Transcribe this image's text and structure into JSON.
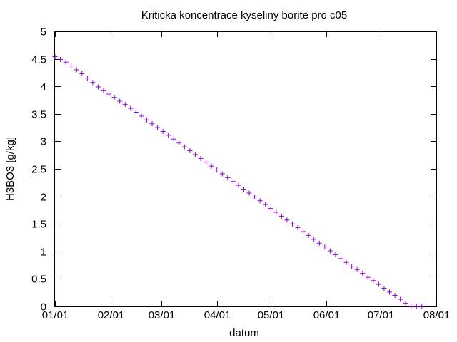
{
  "chart_data": {
    "type": "scatter",
    "title": "Kriticka koncentrace kyseliny borite pro c05",
    "xlabel": "datum",
    "ylabel": "H3BO3 [g/kg]",
    "xlim": [
      "01/01",
      "08/01"
    ],
    "ylim": [
      0,
      5
    ],
    "x_ticks": [
      "01/01",
      "02/01",
      "03/01",
      "04/01",
      "05/01",
      "06/01",
      "07/01",
      "08/01"
    ],
    "y_ticks": [
      "0",
      "0.5",
      "1",
      "1.5",
      "2",
      "2.5",
      "3",
      "3.5",
      "4",
      "4.5",
      "5"
    ],
    "grid": false,
    "legend": "none",
    "marker": "+",
    "series": [
      {
        "color": "#9400d3",
        "x": [
          "01/01",
          "01/04",
          "01/07",
          "01/10",
          "01/13",
          "01/16",
          "01/19",
          "01/22",
          "01/25",
          "01/28",
          "01/31",
          "02/03",
          "02/06",
          "02/09",
          "02/12",
          "02/15",
          "02/18",
          "02/21",
          "02/24",
          "02/27",
          "03/02",
          "03/05",
          "03/08",
          "03/11",
          "03/14",
          "03/17",
          "03/20",
          "03/23",
          "03/26",
          "03/29",
          "04/01",
          "04/04",
          "04/07",
          "04/10",
          "04/13",
          "04/16",
          "04/19",
          "04/22",
          "04/25",
          "04/28",
          "05/01",
          "05/04",
          "05/07",
          "05/10",
          "05/13",
          "05/16",
          "05/19",
          "05/22",
          "05/25",
          "05/28",
          "05/31",
          "06/03",
          "06/06",
          "06/09",
          "06/12",
          "06/15",
          "06/18",
          "06/21",
          "06/24",
          "06/27",
          "06/30",
          "07/03",
          "07/06",
          "07/09",
          "07/12",
          "07/15",
          "07/18",
          "07/21",
          "07/24"
        ],
        "y": [
          4.54,
          4.49,
          4.44,
          4.37,
          4.3,
          4.23,
          4.15,
          4.07,
          3.99,
          3.92,
          3.86,
          3.8,
          3.73,
          3.67,
          3.6,
          3.53,
          3.46,
          3.39,
          3.32,
          3.25,
          3.18,
          3.11,
          3.04,
          2.97,
          2.9,
          2.83,
          2.76,
          2.69,
          2.62,
          2.55,
          2.48,
          2.41,
          2.34,
          2.27,
          2.2,
          2.13,
          2.06,
          1.99,
          1.92,
          1.85,
          1.78,
          1.71,
          1.64,
          1.57,
          1.5,
          1.43,
          1.36,
          1.29,
          1.22,
          1.15,
          1.08,
          1.01,
          0.94,
          0.87,
          0.8,
          0.73,
          0.67,
          0.6,
          0.53,
          0.47,
          0.4,
          0.33,
          0.26,
          0.2,
          0.13,
          0.06,
          0.0,
          0.0,
          0.0
        ]
      }
    ]
  }
}
